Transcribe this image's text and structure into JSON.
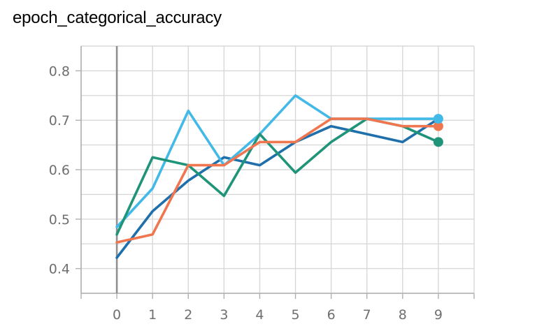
{
  "title": "epoch_categorical_accuracy",
  "chart_data": {
    "type": "line",
    "title": "epoch_categorical_accuracy",
    "xlabel": "",
    "ylabel": "",
    "x": [
      0,
      1,
      2,
      3,
      4,
      5,
      6,
      7,
      8,
      9
    ],
    "xlim": [
      -1,
      10
    ],
    "ylim": [
      0.35,
      0.85
    ],
    "x_ticks": [
      "0",
      "1",
      "2",
      "3",
      "4",
      "5",
      "6",
      "7",
      "8",
      "9"
    ],
    "y_ticks": [
      "0.4",
      "0.5",
      "0.6",
      "0.7",
      "0.8"
    ],
    "y_tick_values": [
      0.4,
      0.5,
      0.6,
      0.7,
      0.8
    ],
    "grid": true,
    "series": [
      {
        "color": "#1f6fab",
        "values": [
          0.422,
          0.516,
          0.578,
          0.625,
          0.609,
          0.656,
          0.688,
          0.672,
          0.656,
          0.703
        ]
      },
      {
        "color": "#43b9e8",
        "values": [
          0.484,
          0.562,
          0.719,
          0.609,
          0.672,
          0.75,
          0.703,
          0.703,
          0.703,
          0.703
        ]
      },
      {
        "color": "#1f9479",
        "values": [
          0.469,
          0.625,
          0.609,
          0.547,
          0.672,
          0.594,
          0.656,
          0.703,
          0.688,
          0.656
        ]
      },
      {
        "color": "#f07650",
        "values": [
          0.453,
          0.469,
          0.609,
          0.609,
          0.656,
          0.656,
          0.703,
          0.703,
          0.688,
          0.688
        ]
      }
    ]
  }
}
